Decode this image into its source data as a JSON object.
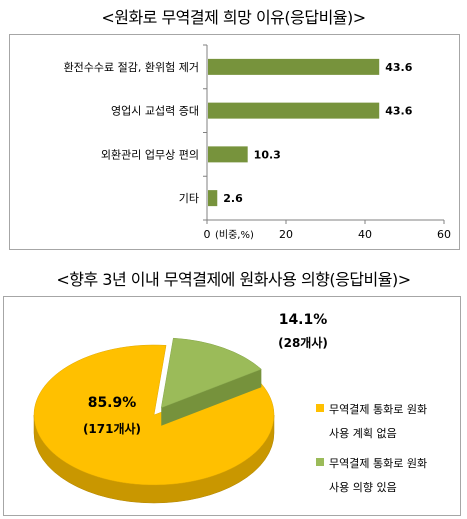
{
  "title_top": "<원화로 무역결제 희망 이유(응답비율)>",
  "title_bottom": "<향후 3년 이내 무역결제에 원화사용 의향(응답비율)>",
  "colors": {
    "bar": "#77933c",
    "pie_main": "#ffc000",
    "pie_minor": "#9bbb59",
    "axis": "#808080"
  },
  "chart_data": [
    {
      "type": "bar",
      "orientation": "horizontal",
      "categories": [
        "환전수수료 절감, 환위험 제거",
        "영업시 교섭력 증대",
        "외환관리 업무상 편의",
        "기타"
      ],
      "values": [
        43.6,
        43.6,
        10.3,
        2.6
      ],
      "value_labels": [
        "43.6",
        "43.6",
        "10.3",
        "2.6"
      ],
      "xlabel": "(비중,%)",
      "xlim": [
        0,
        60
      ],
      "xticks": [
        "0",
        "20",
        "40",
        "60"
      ],
      "grid": false
    },
    {
      "type": "pie",
      "style": "3d",
      "slices": [
        {
          "label": "무역결제 통화로 원화 사용 계획 없음",
          "label_lines": [
            "무역결제 통화로 원화",
            "사용 계획 없음"
          ],
          "value": 85.9,
          "pct_label": "85.9%",
          "count_label": "(171개사)"
        },
        {
          "label": "무역결제 통화로 원화 사용 의향 있음",
          "label_lines": [
            "무역결제 통화로 원화",
            "사용 의향 있음"
          ],
          "value": 14.1,
          "pct_label": "14.1%",
          "count_label": "(28개사)"
        }
      ],
      "legend_position": "right"
    }
  ]
}
